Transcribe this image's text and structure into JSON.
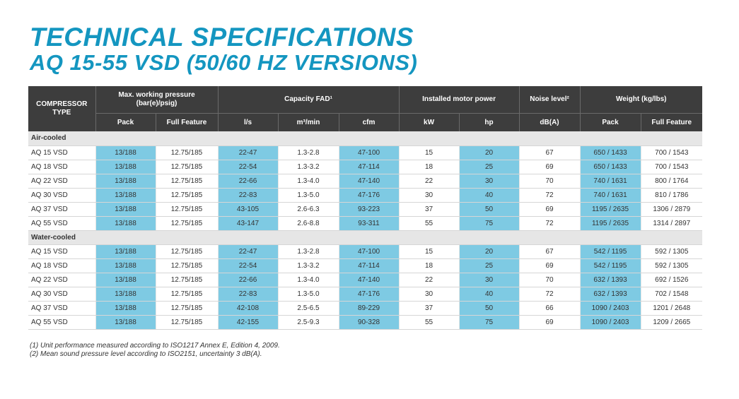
{
  "title": {
    "line1": "TECHNICAL SPECIFICATIONS",
    "line2": "AQ 15-55 VSD (50/60 HZ VERSIONS)"
  },
  "colors": {
    "title": "#1496c0",
    "header_bg": "#3d3d3d",
    "highlight": "#7ecae3",
    "section_bg": "#e6e6e6"
  },
  "table": {
    "headers": {
      "compressor_type": "COMPRESSOR TYPE",
      "max_pressure": "Max. working pressure (bar(e)/psig)",
      "capacity": "Capacity FAD¹",
      "motor_power": "Installed motor power",
      "noise": "Noise level²",
      "weight": "Weight (kg/lbs)"
    },
    "subheaders": [
      "Pack",
      "Full Feature",
      "l/s",
      "m³/min",
      "cfm",
      "kW",
      "hp",
      "dB(A)",
      "Pack",
      "Full Feature"
    ],
    "sections": [
      {
        "label": "Air-cooled",
        "rows": [
          [
            "AQ 15 VSD",
            "13/188",
            "12.75/185",
            "22-47",
            "1.3-2.8",
            "47-100",
            "15",
            "20",
            "67",
            "650 / 1433",
            "700 / 1543"
          ],
          [
            "AQ 18 VSD",
            "13/188",
            "12.75/185",
            "22-54",
            "1.3-3.2",
            "47-114",
            "18",
            "25",
            "69",
            "650 / 1433",
            "700 / 1543"
          ],
          [
            "AQ 22 VSD",
            "13/188",
            "12.75/185",
            "22-66",
            "1.3-4.0",
            "47-140",
            "22",
            "30",
            "70",
            "740 / 1631",
            "800 / 1764"
          ],
          [
            "AQ 30 VSD",
            "13/188",
            "12.75/185",
            "22-83",
            "1.3-5.0",
            "47-176",
            "30",
            "40",
            "72",
            "740 / 1631",
            "810 / 1786"
          ],
          [
            "AQ 37 VSD",
            "13/188",
            "12.75/185",
            "43-105",
            "2.6-6.3",
            "93-223",
            "37",
            "50",
            "69",
            "1195 / 2635",
            "1306 / 2879"
          ],
          [
            "AQ 55 VSD",
            "13/188",
            "12.75/185",
            "43-147",
            "2.6-8.8",
            "93-311",
            "55",
            "75",
            "72",
            "1195 / 2635",
            "1314 / 2897"
          ]
        ]
      },
      {
        "label": "Water-cooled",
        "rows": [
          [
            "AQ 15 VSD",
            "13/188",
            "12.75/185",
            "22-47",
            "1.3-2.8",
            "47-100",
            "15",
            "20",
            "67",
            "542 / 1195",
            "592 / 1305"
          ],
          [
            "AQ 18 VSD",
            "13/188",
            "12.75/185",
            "22-54",
            "1.3-3.2",
            "47-114",
            "18",
            "25",
            "69",
            "542 / 1195",
            "592 / 1305"
          ],
          [
            "AQ 22 VSD",
            "13/188",
            "12.75/185",
            "22-66",
            "1.3-4.0",
            "47-140",
            "22",
            "30",
            "70",
            "632 / 1393",
            "692 / 1526"
          ],
          [
            "AQ 30 VSD",
            "13/188",
            "12.75/185",
            "22-83",
            "1.3-5.0",
            "47-176",
            "30",
            "40",
            "72",
            "632 / 1393",
            "702 / 1548"
          ],
          [
            "AQ 37 VSD",
            "13/188",
            "12.75/185",
            "42-108",
            "2.5-6.5",
            "89-229",
            "37",
            "50",
            "66",
            "1090 / 2403",
            "1201 / 2648"
          ],
          [
            "AQ 55 VSD",
            "13/188",
            "12.75/185",
            "42-155",
            "2.5-9.3",
            "90-328",
            "55",
            "75",
            "69",
            "1090 / 2403",
            "1209 / 2665"
          ]
        ]
      }
    ],
    "highlight_columns": [
      1,
      3,
      5,
      7,
      9
    ]
  },
  "footnotes": [
    "(1) Unit performance measured according to ISO1217 Annex E, Edition 4, 2009.",
    "(2) Mean sound pressure level according to ISO2151, uncertainty 3 dB(A)."
  ]
}
